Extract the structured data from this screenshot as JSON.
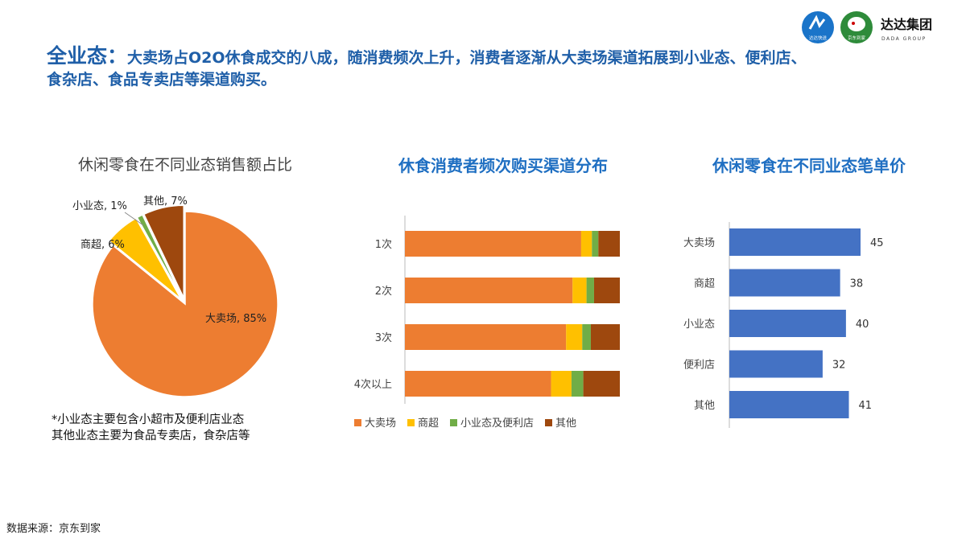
{
  "header": {
    "lead": "全业态：",
    "text": "大卖场占O2O休食成交的八成，随消费频次上升，消费者逐渐从大卖场渠道拓展到小业态、便利店、食杂店、食品专卖店等渠道购买。"
  },
  "logos": {
    "logo1_text": "达达快送",
    "logo2_text": "京东到家",
    "brand_name": "达达集团",
    "brand_sub": "DADA GROUP",
    "colors": {
      "blue": "#1a74c9",
      "green": "#2e8b3a"
    }
  },
  "footnote": {
    "line1": "*小业态主要包含小超市及便利店业态",
    "line2": "其他业态主要为食品专卖店，食杂店等"
  },
  "source": "数据来源：京东到家",
  "chart_data": [
    {
      "type": "pie",
      "title": "休闲零食在不同业态销售额占比",
      "labels": [
        "大卖场",
        "商超",
        "小业态",
        "其他"
      ],
      "values": [
        85,
        6,
        1,
        7
      ],
      "data_labels": [
        "大卖场, 85%",
        "商超, 6%",
        "小业态, 1%",
        "其他, 7%"
      ],
      "colors": [
        "#ed7d31",
        "#ffc000",
        "#70ad47",
        "#9e480e"
      ]
    },
    {
      "type": "bar",
      "orientation": "horizontal",
      "stacked": true,
      "title": "休食消费者频次购买渠道分布",
      "categories": [
        "1次",
        "2次",
        "3次",
        "4次以上"
      ],
      "series": [
        {
          "name": "大卖场",
          "values": [
            82,
            78,
            75,
            68
          ],
          "color": "#ed7d31"
        },
        {
          "name": "商超",
          "values": [
            5,
            6.5,
            7.5,
            9.5
          ],
          "color": "#ffc000"
        },
        {
          "name": "小业态及便利店",
          "values": [
            3,
            3.5,
            4,
            5.5
          ],
          "color": "#70ad47"
        },
        {
          "name": "其他",
          "values": [
            10,
            12,
            13.5,
            17
          ],
          "color": "#9e480e"
        }
      ],
      "xlim": [
        0,
        100
      ],
      "legend": "bottom"
    },
    {
      "type": "bar",
      "orientation": "horizontal",
      "title": "休闲零食在不同业态笔单价",
      "categories": [
        "大卖场",
        "商超",
        "小业态",
        "便利店",
        "其他"
      ],
      "values": [
        45,
        38,
        40,
        32,
        41
      ],
      "color": "#4472c4"
    }
  ]
}
